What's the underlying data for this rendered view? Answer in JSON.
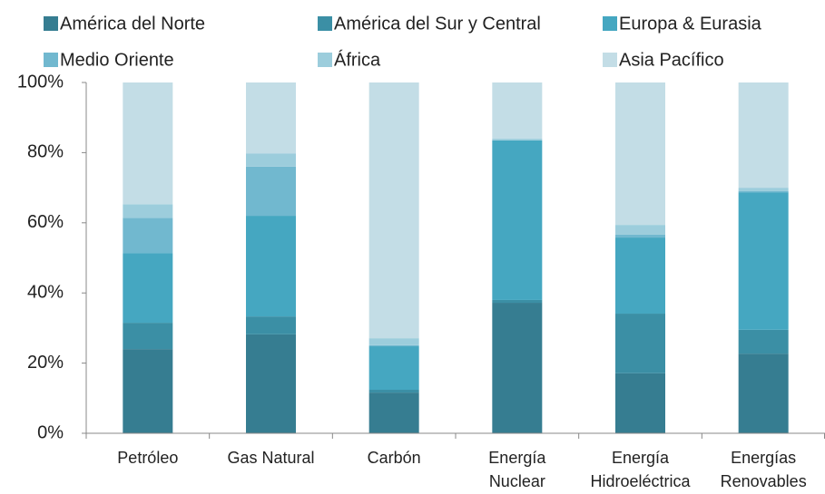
{
  "chart_data": {
    "type": "stacked_bar",
    "categories": [
      "Petróleo",
      "Gas Natural",
      "Carbón",
      "Energía Nuclear",
      "Energía Hidroeléctrica",
      "Energías Renovables"
    ],
    "series": [
      {
        "name": "América del Norte",
        "color": "#367d91",
        "values": [
          24,
          28.2,
          11.6,
          37.2,
          17.1,
          22.7
        ]
      },
      {
        "name": "América del Sur y Central",
        "color": "#3b8fa5",
        "values": [
          7.5,
          5.1,
          0.8,
          0.8,
          17,
          6.8
        ]
      },
      {
        "name": "Europa & Eurasia",
        "color": "#45a7c1",
        "values": [
          19.8,
          28.7,
          12.4,
          45.5,
          21.7,
          39.2
        ]
      },
      {
        "name": "Medio Oriente",
        "color": "#71b8cf",
        "values": [
          10.1,
          14,
          0.3,
          0,
          0.8,
          0.3
        ]
      },
      {
        "name": "África",
        "color": "#9ccddc",
        "values": [
          3.9,
          3.8,
          2,
          0.5,
          2.8,
          1
        ]
      },
      {
        "name": "Asia Pacífico",
        "color": "#c3dde6",
        "values": [
          34.7,
          20.2,
          72.9,
          16,
          40.6,
          30
        ]
      }
    ],
    "ylim": [
      0,
      100
    ],
    "yticks": [
      {
        "value": 0,
        "label": "0%"
      },
      {
        "value": 20,
        "label": "20%"
      },
      {
        "value": 40,
        "label": "40%"
      },
      {
        "value": 60,
        "label": "60%"
      },
      {
        "value": 80,
        "label": "80%"
      },
      {
        "value": 100,
        "label": "100%"
      }
    ],
    "legend": "top"
  }
}
